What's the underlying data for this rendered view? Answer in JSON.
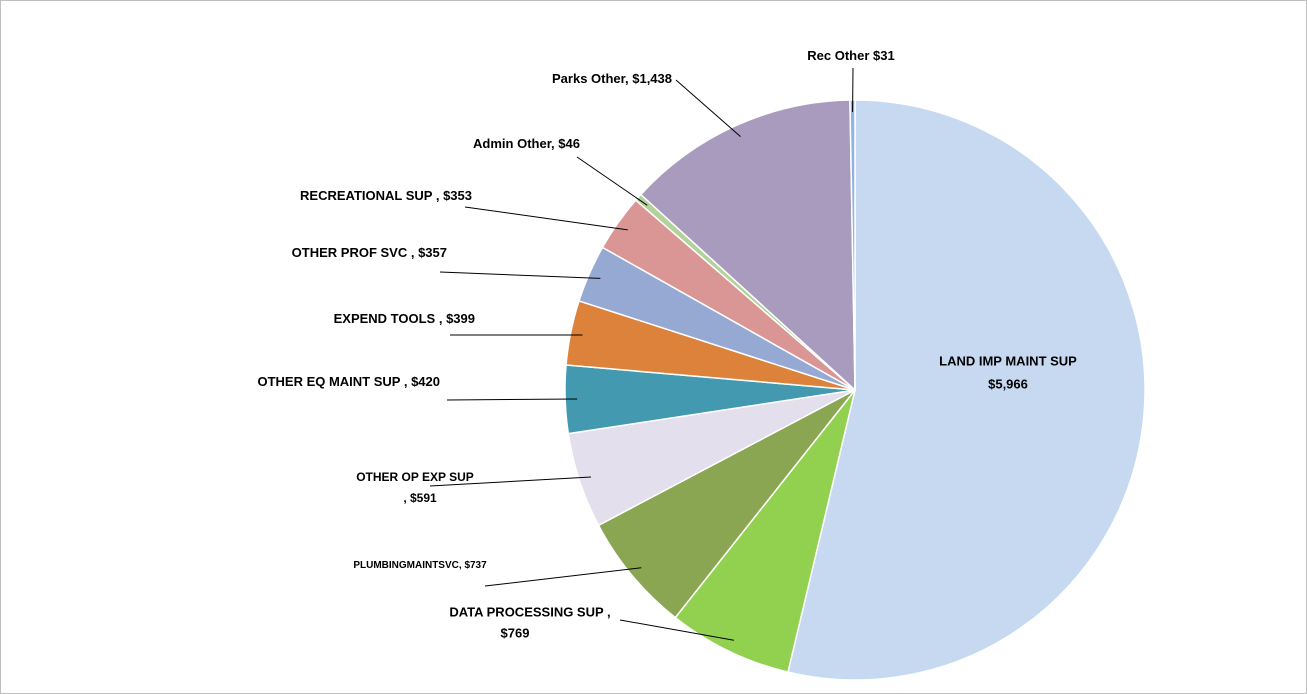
{
  "chart_data": {
    "type": "pie",
    "categories": [
      "LAND IMP MAINT SUP",
      "DATA PROCESSING SUP ,",
      "PLUMBINGMAINTSVC,",
      "OTHER OP EXP SUP",
      "OTHER EQ MAINT SUP ,",
      "EXPEND TOOLS ,",
      "OTHER PROF SVC ,",
      "RECREATIONAL SUP ,",
      "Admin Other,",
      "Parks Other,",
      "Rec Other"
    ],
    "values": [
      5966,
      769,
      737,
      591,
      420,
      399,
      357,
      353,
      46,
      1438,
      31
    ],
    "value_labels": [
      "$5,966",
      "$769",
      "$737",
      ", $591",
      "$420",
      "$399",
      "$357",
      "$353",
      "$46",
      "$1,438",
      "$31"
    ],
    "colors": [
      "#c6d9f1",
      "#92d050",
      "#8aa652",
      "#e4dfec",
      "#4399b0",
      "#dd823b",
      "#95a9d2",
      "#d99694",
      "#b3d19a",
      "#a99bbd",
      "#8fb4e3"
    ]
  }
}
